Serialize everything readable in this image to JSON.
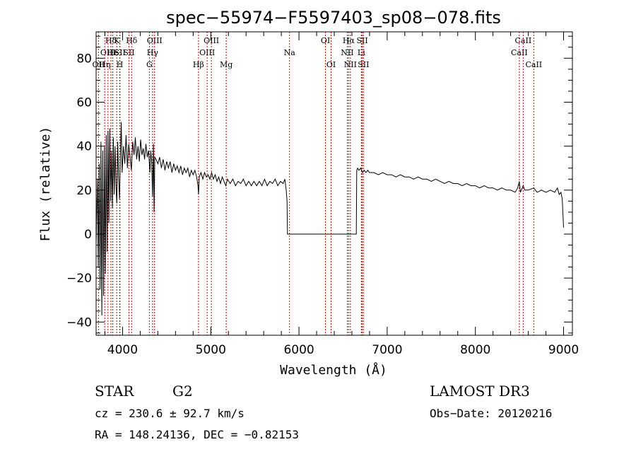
{
  "chart_data": {
    "type": "line",
    "title": "spec−55974−F5597403_sp08−078.fits",
    "xlabel": "Wavelength (Å)",
    "ylabel": "Flux (relative)",
    "xlim": [
      3700,
      9100
    ],
    "ylim": [
      -46,
      92
    ],
    "xticks": [
      4000,
      5000,
      6000,
      7000,
      8000,
      9000
    ],
    "yticks": [
      -40,
      -20,
      0,
      20,
      40,
      60,
      80
    ],
    "xtick_labels": [
      "4000",
      "5000",
      "6000",
      "7000",
      "8000",
      "9000"
    ],
    "ytick_labels": [
      "−40",
      "−20",
      "0",
      "20",
      "40",
      "60",
      "80"
    ],
    "grid": false,
    "lines": [
      {
        "wl": 3727,
        "label": "OII",
        "row": 2
      },
      {
        "wl": 3798,
        "label": "Hη",
        "row": 2
      },
      {
        "wl": 3835,
        "label": "OIII",
        "row": 1
      },
      {
        "wl": 3868,
        "label": "Hδ",
        "row": 0
      },
      {
        "wl": 3889,
        "label": "He",
        "row": 1
      },
      {
        "wl": 3934,
        "label": "K",
        "row": 0
      },
      {
        "wl": 3969,
        "label": "H",
        "row": 2
      },
      {
        "wl": 3970,
        "label": "SII",
        "row": 1
      },
      {
        "wl": 4072,
        "label": "SII",
        "row": 1
      },
      {
        "wl": 4102,
        "label": "Hδ",
        "row": 0
      },
      {
        "wl": 4304,
        "label": "G",
        "row": 2
      },
      {
        "wl": 4340,
        "label": "Hγ",
        "row": 1
      },
      {
        "wl": 4363,
        "label": "OIII",
        "row": 0
      },
      {
        "wl": 4861,
        "label": "Hβ",
        "row": 2
      },
      {
        "wl": 4959,
        "label": "OIII",
        "row": 1
      },
      {
        "wl": 5007,
        "label": "OIII",
        "row": 0
      },
      {
        "wl": 5175,
        "label": "Mg",
        "row": 2
      },
      {
        "wl": 5893,
        "label": "Na",
        "row": 1
      },
      {
        "wl": 6300,
        "label": "OI",
        "row": 0
      },
      {
        "wl": 6364,
        "label": "OI",
        "row": 2
      },
      {
        "wl": 6548,
        "label": "NII",
        "row": 1
      },
      {
        "wl": 6563,
        "label": "Hα",
        "row": 0
      },
      {
        "wl": 6583,
        "label": "NII",
        "row": 2
      },
      {
        "wl": 6707,
        "label": "Li",
        "row": 1
      },
      {
        "wl": 6717,
        "label": "SII",
        "row": 0
      },
      {
        "wl": 6731,
        "label": "SII",
        "row": 2
      },
      {
        "wl": 8498,
        "label": "CaII",
        "row": 1
      },
      {
        "wl": 8542,
        "label": "CaII",
        "row": 0
      },
      {
        "wl": 8662,
        "label": "CaII",
        "row": 2
      }
    ],
    "series": [
      {
        "name": "flux",
        "points": [
          [
            3700,
            -5
          ],
          [
            3715,
            25
          ],
          [
            3725,
            -15
          ],
          [
            3735,
            32
          ],
          [
            3745,
            -25
          ],
          [
            3755,
            42
          ],
          [
            3765,
            -37
          ],
          [
            3775,
            38
          ],
          [
            3785,
            -28
          ],
          [
            3795,
            40
          ],
          [
            3805,
            -18
          ],
          [
            3815,
            45
          ],
          [
            3825,
            -8
          ],
          [
            3835,
            47
          ],
          [
            3845,
            5
          ],
          [
            3855,
            48
          ],
          [
            3865,
            15
          ],
          [
            3875,
            38
          ],
          [
            3885,
            12
          ],
          [
            3895,
            44
          ],
          [
            3905,
            18
          ],
          [
            3915,
            40
          ],
          [
            3925,
            22
          ],
          [
            3935,
            14
          ],
          [
            3945,
            42
          ],
          [
            3955,
            26
          ],
          [
            3965,
            16
          ],
          [
            3975,
            36
          ],
          [
            3985,
            51
          ],
          [
            3995,
            28
          ],
          [
            4010,
            40
          ],
          [
            4025,
            32
          ],
          [
            4040,
            45
          ],
          [
            4055,
            30
          ],
          [
            4070,
            41
          ],
          [
            4085,
            35
          ],
          [
            4100,
            29
          ],
          [
            4115,
            42
          ],
          [
            4130,
            36
          ],
          [
            4145,
            44
          ],
          [
            4160,
            34
          ],
          [
            4175,
            40
          ],
          [
            4190,
            33
          ],
          [
            4205,
            43
          ],
          [
            4220,
            36
          ],
          [
            4235,
            39
          ],
          [
            4250,
            34
          ],
          [
            4265,
            41
          ],
          [
            4280,
            35
          ],
          [
            4295,
            38
          ],
          [
            4310,
            28
          ],
          [
            4320,
            38
          ],
          [
            4330,
            33
          ],
          [
            4340,
            17
          ],
          [
            4350,
            41
          ],
          [
            4358,
            10
          ],
          [
            4365,
            35
          ],
          [
            4380,
            34
          ],
          [
            4400,
            32
          ],
          [
            4420,
            35
          ],
          [
            4440,
            30
          ],
          [
            4460,
            34
          ],
          [
            4480,
            29
          ],
          [
            4500,
            33
          ],
          [
            4520,
            30
          ],
          [
            4540,
            33
          ],
          [
            4560,
            28
          ],
          [
            4580,
            32
          ],
          [
            4600,
            29
          ],
          [
            4620,
            31
          ],
          [
            4640,
            28
          ],
          [
            4660,
            31
          ],
          [
            4680,
            27
          ],
          [
            4700,
            30
          ],
          [
            4720,
            28
          ],
          [
            4740,
            30
          ],
          [
            4760,
            26
          ],
          [
            4780,
            29
          ],
          [
            4800,
            27
          ],
          [
            4820,
            29
          ],
          [
            4840,
            26
          ],
          [
            4855,
            22
          ],
          [
            4861,
            18
          ],
          [
            4870,
            26
          ],
          [
            4890,
            28
          ],
          [
            4910,
            25
          ],
          [
            4930,
            28
          ],
          [
            4950,
            26
          ],
          [
            4970,
            27
          ],
          [
            4990,
            25
          ],
          [
            5010,
            28
          ],
          [
            5030,
            25
          ],
          [
            5050,
            27
          ],
          [
            5070,
            24
          ],
          [
            5090,
            26
          ],
          [
            5110,
            23
          ],
          [
            5130,
            26
          ],
          [
            5150,
            24
          ],
          [
            5170,
            22
          ],
          [
            5190,
            25
          ],
          [
            5220,
            23
          ],
          [
            5250,
            25
          ],
          [
            5280,
            22
          ],
          [
            5310,
            24
          ],
          [
            5340,
            23
          ],
          [
            5370,
            25
          ],
          [
            5400,
            22
          ],
          [
            5430,
            24
          ],
          [
            5460,
            22
          ],
          [
            5490,
            24
          ],
          [
            5520,
            22
          ],
          [
            5550,
            24
          ],
          [
            5580,
            22
          ],
          [
            5610,
            25
          ],
          [
            5640,
            22
          ],
          [
            5670,
            24
          ],
          [
            5700,
            23
          ],
          [
            5730,
            25
          ],
          [
            5760,
            22
          ],
          [
            5790,
            24
          ],
          [
            5820,
            23
          ],
          [
            5840,
            25
          ],
          [
            5855,
            20
          ],
          [
            5865,
            15
          ],
          [
            5870,
            0
          ],
          [
            5880,
            0
          ],
          [
            6000,
            0
          ],
          [
            6200,
            0
          ],
          [
            6400,
            0
          ],
          [
            6600,
            0
          ],
          [
            6650,
            0
          ],
          [
            6655,
            29
          ],
          [
            6665,
            30
          ],
          [
            6680,
            29
          ],
          [
            6700,
            30
          ],
          [
            6720,
            28
          ],
          [
            6740,
            29
          ],
          [
            6760,
            28
          ],
          [
            6780,
            29
          ],
          [
            6800,
            28
          ],
          [
            6850,
            28
          ],
          [
            6900,
            27
          ],
          [
            6950,
            28
          ],
          [
            7000,
            27
          ],
          [
            7050,
            27
          ],
          [
            7100,
            26
          ],
          [
            7150,
            27
          ],
          [
            7200,
            26
          ],
          [
            7250,
            26
          ],
          [
            7300,
            25
          ],
          [
            7350,
            26
          ],
          [
            7400,
            25
          ],
          [
            7450,
            25
          ],
          [
            7500,
            24
          ],
          [
            7550,
            25
          ],
          [
            7600,
            24
          ],
          [
            7650,
            23
          ],
          [
            7700,
            24
          ],
          [
            7750,
            23
          ],
          [
            7800,
            23
          ],
          [
            7850,
            22
          ],
          [
            7900,
            23
          ],
          [
            7950,
            22
          ],
          [
            8000,
            22
          ],
          [
            8050,
            21
          ],
          [
            8100,
            22
          ],
          [
            8150,
            21
          ],
          [
            8200,
            21
          ],
          [
            8250,
            20
          ],
          [
            8300,
            21
          ],
          [
            8350,
            20
          ],
          [
            8400,
            20
          ],
          [
            8450,
            19
          ],
          [
            8480,
            21
          ],
          [
            8498,
            24
          ],
          [
            8510,
            19
          ],
          [
            8542,
            22
          ],
          [
            8560,
            20
          ],
          [
            8600,
            20
          ],
          [
            8662,
            21
          ],
          [
            8700,
            19
          ],
          [
            8750,
            20
          ],
          [
            8800,
            19
          ],
          [
            8850,
            20
          ],
          [
            8900,
            19
          ],
          [
            8930,
            21
          ],
          [
            8950,
            18
          ],
          [
            8970,
            19
          ],
          [
            8985,
            16
          ],
          [
            9000,
            3
          ]
        ]
      }
    ]
  },
  "info": {
    "object_type": "STAR",
    "subclass": "G2",
    "survey": "LAMOST DR3",
    "redshift": "cz = 230.6 ± 92.7 km/s",
    "obs_date": "Obs−Date: 20120216",
    "coords": "RA = 148.24136, DEC =  −0.82153"
  }
}
